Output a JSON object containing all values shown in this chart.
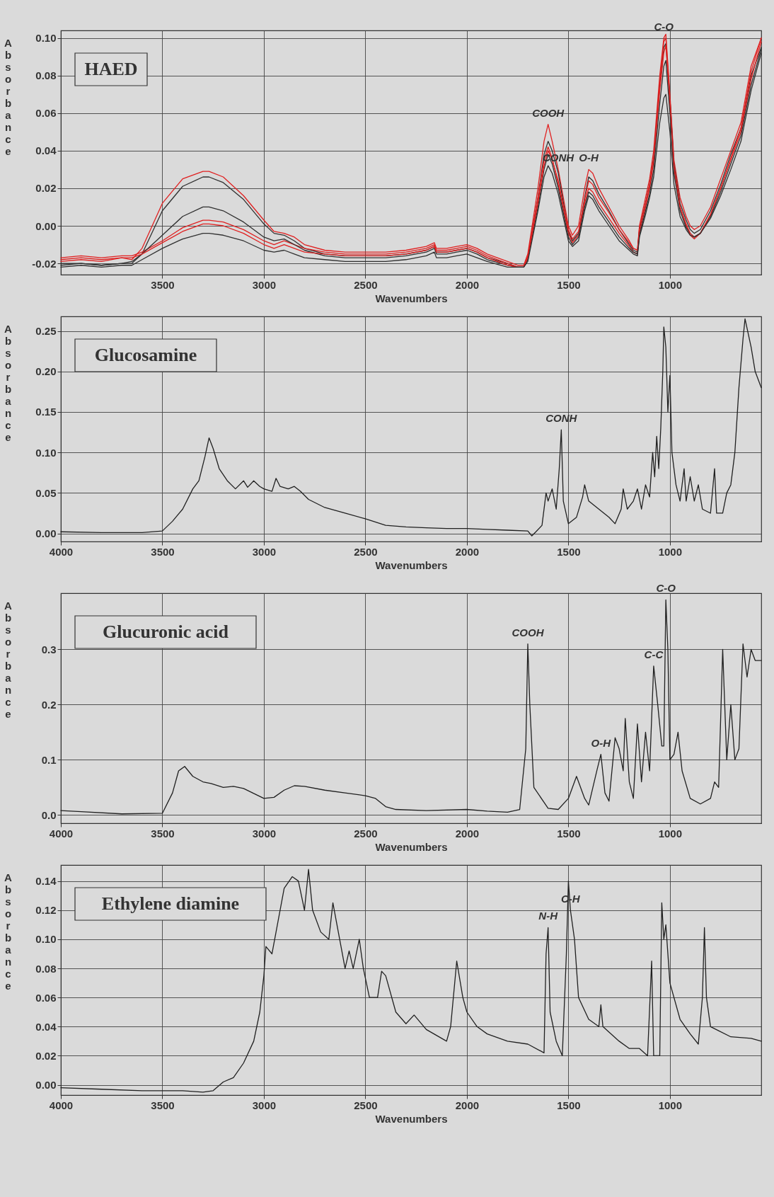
{
  "chart_data": [
    {
      "type": "line",
      "title": "HAED",
      "xlabel": "Wavenumbers",
      "ylabel": "Absorbance",
      "grid": true,
      "xlim": [
        4000,
        550
      ],
      "xticks": [
        3500,
        3000,
        2500,
        2000,
        1500,
        1000
      ],
      "ylim": [
        -0.026,
        0.104
      ],
      "yticks": [
        {
          "value": -0.02,
          "label": "-0.02"
        },
        {
          "value": 0,
          "label": "0.00"
        },
        {
          "value": 0.02,
          "label": "0.02"
        },
        {
          "value": 0.04,
          "label": "0.04"
        },
        {
          "value": 0.06,
          "label": "0.06"
        },
        {
          "value": 0.08,
          "label": "0.08"
        },
        {
          "value": 0.1,
          "label": "0.10"
        }
      ],
      "annotations": [
        {
          "text": "COOH",
          "x": 1600,
          "y": 0.054
        },
        {
          "text": "CONH",
          "x": 1550,
          "y": 0.03
        },
        {
          "text": "O-H",
          "x": 1400,
          "y": 0.03
        },
        {
          "text": "C-O",
          "x": 1030,
          "y": 0.1
        }
      ],
      "x": [
        4000,
        3900,
        3800,
        3700,
        3650,
        3600,
        3500,
        3400,
        3300,
        3270,
        3200,
        3100,
        3000,
        2950,
        2900,
        2850,
        2800,
        2700,
        2600,
        2500,
        2400,
        2300,
        2200,
        2160,
        2150,
        2100,
        2050,
        2000,
        1950,
        1900,
        1800,
        1750,
        1720,
        1700,
        1650,
        1620,
        1600,
        1580,
        1550,
        1500,
        1480,
        1450,
        1420,
        1400,
        1380,
        1350,
        1300,
        1250,
        1200,
        1180,
        1160,
        1150,
        1120,
        1100,
        1080,
        1050,
        1030,
        1020,
        1000,
        980,
        950,
        920,
        900,
        880,
        850,
        800,
        750,
        700,
        650,
        600,
        550
      ],
      "series": [
        {
          "color": "#e02020",
          "values": [
            -0.019,
            -0.018,
            -0.019,
            -0.017,
            -0.018,
            -0.012,
            0.012,
            0.025,
            0.029,
            0.029,
            0.026,
            0.016,
            0.003,
            -0.003,
            -0.004,
            -0.006,
            -0.01,
            -0.013,
            -0.014,
            -0.014,
            -0.014,
            -0.013,
            -0.011,
            -0.009,
            -0.012,
            -0.012,
            -0.011,
            -0.01,
            -0.012,
            -0.015,
            -0.019,
            -0.021,
            -0.021,
            -0.015,
            0.02,
            0.045,
            0.054,
            0.045,
            0.03,
            0.0,
            -0.005,
            0.0,
            0.02,
            0.03,
            0.028,
            0.02,
            0.01,
            0.0,
            -0.008,
            -0.012,
            -0.013,
            0.0,
            0.015,
            0.025,
            0.04,
            0.08,
            0.1,
            0.102,
            0.07,
            0.035,
            0.015,
            0.005,
            0.0,
            -0.002,
            0.0,
            0.01,
            0.025,
            0.04,
            0.055,
            0.085,
            0.1
          ]
        },
        {
          "color": "#303030",
          "values": [
            -0.021,
            -0.02,
            -0.021,
            -0.02,
            -0.02,
            -0.015,
            0.008,
            0.021,
            0.026,
            0.026,
            0.023,
            0.014,
            0.001,
            -0.004,
            -0.005,
            -0.008,
            -0.012,
            -0.015,
            -0.016,
            -0.016,
            -0.016,
            -0.015,
            -0.013,
            -0.011,
            -0.014,
            -0.014,
            -0.013,
            -0.012,
            -0.014,
            -0.017,
            -0.02,
            -0.022,
            -0.022,
            -0.017,
            0.015,
            0.038,
            0.045,
            0.04,
            0.028,
            -0.003,
            -0.008,
            -0.004,
            0.015,
            0.026,
            0.024,
            0.017,
            0.008,
            -0.002,
            -0.01,
            -0.013,
            -0.014,
            -0.002,
            0.012,
            0.022,
            0.036,
            0.075,
            0.095,
            0.097,
            0.068,
            0.033,
            0.012,
            0.003,
            -0.002,
            -0.004,
            -0.002,
            0.008,
            0.022,
            0.038,
            0.052,
            0.08,
            0.095
          ]
        },
        {
          "color": "#e02020",
          "values": [
            -0.017,
            -0.016,
            -0.017,
            -0.016,
            -0.016,
            -0.014,
            -0.008,
            -0.001,
            0.003,
            0.003,
            0.002,
            -0.002,
            -0.008,
            -0.01,
            -0.008,
            -0.01,
            -0.012,
            -0.014,
            -0.015,
            -0.015,
            -0.015,
            -0.014,
            -0.012,
            -0.01,
            -0.013,
            -0.013,
            -0.012,
            -0.011,
            -0.013,
            -0.016,
            -0.02,
            -0.022,
            -0.022,
            -0.016,
            0.015,
            0.035,
            0.042,
            0.036,
            0.022,
            -0.004,
            -0.009,
            -0.005,
            0.012,
            0.02,
            0.018,
            0.012,
            0.004,
            -0.004,
            -0.011,
            -0.014,
            -0.015,
            -0.004,
            0.01,
            0.02,
            0.034,
            0.072,
            0.092,
            0.096,
            0.065,
            0.03,
            0.01,
            0.0,
            -0.005,
            -0.007,
            -0.004,
            0.006,
            0.02,
            0.035,
            0.05,
            0.078,
            0.098
          ]
        },
        {
          "color": "#303030",
          "values": [
            -0.02,
            -0.02,
            -0.021,
            -0.02,
            -0.019,
            -0.015,
            -0.005,
            0.005,
            0.01,
            0.01,
            0.008,
            0.002,
            -0.006,
            -0.008,
            -0.007,
            -0.01,
            -0.013,
            -0.016,
            -0.017,
            -0.017,
            -0.017,
            -0.016,
            -0.014,
            -0.012,
            -0.015,
            -0.015,
            -0.014,
            -0.013,
            -0.015,
            -0.018,
            -0.021,
            -0.022,
            -0.022,
            -0.018,
            0.01,
            0.03,
            0.038,
            0.033,
            0.02,
            -0.006,
            -0.01,
            -0.006,
            0.01,
            0.018,
            0.016,
            0.01,
            0.002,
            -0.006,
            -0.012,
            -0.014,
            -0.015,
            -0.005,
            0.008,
            0.017,
            0.03,
            0.065,
            0.085,
            0.088,
            0.06,
            0.028,
            0.008,
            -0.001,
            -0.004,
            -0.006,
            -0.004,
            0.005,
            0.018,
            0.033,
            0.048,
            0.075,
            0.094
          ]
        },
        {
          "color": "#e02020",
          "values": [
            -0.018,
            -0.017,
            -0.018,
            -0.017,
            -0.017,
            -0.015,
            -0.009,
            -0.003,
            0.001,
            0.001,
            0.0,
            -0.004,
            -0.01,
            -0.012,
            -0.01,
            -0.012,
            -0.014,
            -0.015,
            -0.016,
            -0.016,
            -0.016,
            -0.015,
            -0.013,
            -0.011,
            -0.014,
            -0.014,
            -0.013,
            -0.012,
            -0.014,
            -0.017,
            -0.021,
            -0.022,
            -0.022,
            -0.017,
            0.012,
            0.032,
            0.04,
            0.035,
            0.024,
            -0.002,
            -0.007,
            -0.003,
            0.014,
            0.024,
            0.022,
            0.015,
            0.007,
            -0.002,
            -0.009,
            -0.012,
            -0.013,
            -0.001,
            0.012,
            0.022,
            0.036,
            0.076,
            0.098,
            0.1,
            0.068,
            0.032,
            0.01,
            0.001,
            -0.004,
            -0.006,
            -0.004,
            0.006,
            0.02,
            0.036,
            0.052,
            0.082,
            0.1
          ]
        },
        {
          "color": "#303030",
          "values": [
            -0.022,
            -0.021,
            -0.022,
            -0.021,
            -0.021,
            -0.018,
            -0.012,
            -0.007,
            -0.004,
            -0.004,
            -0.005,
            -0.008,
            -0.013,
            -0.014,
            -0.013,
            -0.015,
            -0.017,
            -0.018,
            -0.019,
            -0.019,
            -0.019,
            -0.018,
            -0.016,
            -0.014,
            -0.017,
            -0.017,
            -0.016,
            -0.015,
            -0.017,
            -0.019,
            -0.022,
            -0.022,
            -0.022,
            -0.019,
            0.008,
            0.026,
            0.032,
            0.028,
            0.017,
            -0.008,
            -0.011,
            -0.008,
            0.008,
            0.016,
            0.014,
            0.008,
            0.0,
            -0.008,
            -0.013,
            -0.015,
            -0.016,
            -0.006,
            0.006,
            0.015,
            0.026,
            0.055,
            0.068,
            0.07,
            0.05,
            0.022,
            0.005,
            -0.002,
            -0.005,
            -0.006,
            -0.004,
            0.004,
            0.016,
            0.03,
            0.045,
            0.072,
            0.092
          ]
        }
      ]
    },
    {
      "type": "line",
      "title": "Glucosamine",
      "xlabel": "Wavenumbers",
      "ylabel": "Absorbance",
      "grid": true,
      "xlim": [
        4000,
        550
      ],
      "xticks": [
        4000,
        3500,
        3000,
        2500,
        2000,
        1500,
        1000
      ],
      "ylim": [
        -0.01,
        0.268
      ],
      "yticks": [
        {
          "value": 0,
          "label": "0.00"
        },
        {
          "value": 0.05,
          "label": "0.05"
        },
        {
          "value": 0.1,
          "label": "0.10"
        },
        {
          "value": 0.15,
          "label": "0.15"
        },
        {
          "value": 0.2,
          "label": "0.20"
        },
        {
          "value": 0.25,
          "label": "0.25"
        }
      ],
      "annotations": [
        {
          "text": "CONH",
          "x": 1535,
          "y": 0.128
        }
      ],
      "x": [
        4000,
        3800,
        3600,
        3500,
        3450,
        3400,
        3350,
        3320,
        3290,
        3270,
        3250,
        3220,
        3180,
        3140,
        3100,
        3080,
        3050,
        3020,
        3000,
        2960,
        2940,
        2920,
        2880,
        2850,
        2820,
        2780,
        2700,
        2600,
        2500,
        2400,
        2300,
        2200,
        2100,
        2000,
        1900,
        1800,
        1700,
        1680,
        1660,
        1630,
        1610,
        1600,
        1580,
        1560,
        1545,
        1535,
        1525,
        1500,
        1460,
        1430,
        1420,
        1400,
        1350,
        1300,
        1270,
        1240,
        1230,
        1210,
        1180,
        1160,
        1140,
        1120,
        1100,
        1085,
        1075,
        1065,
        1055,
        1045,
        1035,
        1030,
        1020,
        1010,
        1000,
        990,
        970,
        950,
        930,
        920,
        900,
        880,
        860,
        840,
        800,
        780,
        770,
        740,
        720,
        700,
        680,
        660,
        640,
        630,
        600,
        580,
        550
      ],
      "series": [
        {
          "color": "#202020",
          "values": [
            0.002,
            0.001,
            0.001,
            0.003,
            0.015,
            0.03,
            0.055,
            0.065,
            0.095,
            0.118,
            0.105,
            0.08,
            0.065,
            0.055,
            0.065,
            0.057,
            0.065,
            0.058,
            0.055,
            0.052,
            0.068,
            0.058,
            0.055,
            0.058,
            0.052,
            0.042,
            0.032,
            0.025,
            0.018,
            0.01,
            0.008,
            0.007,
            0.006,
            0.006,
            0.005,
            0.004,
            0.003,
            -0.003,
            0.002,
            0.01,
            0.05,
            0.04,
            0.055,
            0.03,
            0.08,
            0.128,
            0.04,
            0.012,
            0.02,
            0.045,
            0.06,
            0.04,
            0.03,
            0.02,
            0.012,
            0.03,
            0.055,
            0.03,
            0.04,
            0.055,
            0.03,
            0.06,
            0.045,
            0.1,
            0.07,
            0.12,
            0.08,
            0.13,
            0.2,
            0.255,
            0.23,
            0.15,
            0.195,
            0.1,
            0.06,
            0.04,
            0.08,
            0.04,
            0.07,
            0.04,
            0.06,
            0.03,
            0.025,
            0.08,
            0.025,
            0.025,
            0.05,
            0.06,
            0.1,
            0.18,
            0.24,
            0.265,
            0.23,
            0.2,
            0.18
          ]
        }
      ]
    },
    {
      "type": "line",
      "title": "Glucuronic acid",
      "xlabel": "Wavenumbers",
      "ylabel": "Absorbance",
      "grid": true,
      "xlim": [
        4000,
        550
      ],
      "xticks": [
        4000,
        3500,
        3000,
        2500,
        2000,
        1500,
        1000
      ],
      "ylim": [
        -0.015,
        0.402
      ],
      "yticks": [
        {
          "value": 0,
          "label": "0.0"
        },
        {
          "value": 0.1,
          "label": "0.1"
        },
        {
          "value": 0.2,
          "label": "0.2"
        },
        {
          "value": 0.3,
          "label": "0.3"
        }
      ],
      "annotations": [
        {
          "text": "COOH",
          "x": 1700,
          "y": 0.31
        },
        {
          "text": "O-H",
          "x": 1340,
          "y": 0.11
        },
        {
          "text": "C-C",
          "x": 1080,
          "y": 0.27
        },
        {
          "text": "C-O",
          "x": 1020,
          "y": 0.39
        }
      ],
      "x": [
        4000,
        3900,
        3700,
        3500,
        3450,
        3420,
        3390,
        3350,
        3300,
        3260,
        3200,
        3150,
        3100,
        3000,
        2950,
        2900,
        2850,
        2800,
        2700,
        2600,
        2500,
        2450,
        2400,
        2350,
        2200,
        2000,
        1900,
        1800,
        1740,
        1710,
        1700,
        1690,
        1670,
        1600,
        1550,
        1500,
        1460,
        1420,
        1400,
        1360,
        1340,
        1320,
        1300,
        1270,
        1250,
        1230,
        1220,
        1200,
        1180,
        1160,
        1140,
        1120,
        1100,
        1080,
        1060,
        1040,
        1030,
        1020,
        1010,
        1000,
        980,
        960,
        940,
        900,
        850,
        800,
        780,
        760,
        740,
        720,
        700,
        680,
        660,
        640,
        620,
        600,
        580,
        550
      ],
      "series": [
        {
          "color": "#202020",
          "values": [
            0.008,
            0.006,
            0.002,
            0.003,
            0.04,
            0.08,
            0.088,
            0.07,
            0.06,
            0.057,
            0.05,
            0.052,
            0.048,
            0.03,
            0.032,
            0.045,
            0.053,
            0.052,
            0.045,
            0.04,
            0.035,
            0.03,
            0.015,
            0.01,
            0.008,
            0.01,
            0.007,
            0.005,
            0.01,
            0.12,
            0.31,
            0.2,
            0.05,
            0.012,
            0.01,
            0.03,
            0.07,
            0.03,
            0.018,
            0.08,
            0.11,
            0.04,
            0.025,
            0.14,
            0.12,
            0.08,
            0.175,
            0.06,
            0.03,
            0.165,
            0.06,
            0.15,
            0.08,
            0.27,
            0.2,
            0.125,
            0.125,
            0.39,
            0.3,
            0.1,
            0.11,
            0.15,
            0.08,
            0.03,
            0.02,
            0.03,
            0.06,
            0.05,
            0.3,
            0.1,
            0.2,
            0.1,
            0.12,
            0.31,
            0.25,
            0.3,
            0.28,
            0.28
          ]
        }
      ]
    },
    {
      "type": "line",
      "title": "Ethylene diamine",
      "xlabel": "Wavenumbers",
      "ylabel": "Absorbance",
      "grid": true,
      "xlim": [
        4000,
        550
      ],
      "xticks": [
        4000,
        3500,
        3000,
        2500,
        2000,
        1500,
        1000
      ],
      "ylim": [
        -0.007,
        0.151
      ],
      "yticks": [
        {
          "value": 0,
          "label": "0.00"
        },
        {
          "value": 0.02,
          "label": "0.02"
        },
        {
          "value": 0.04,
          "label": "0.04"
        },
        {
          "value": 0.06,
          "label": "0.06"
        },
        {
          "value": 0.08,
          "label": "0.08"
        },
        {
          "value": 0.1,
          "label": "0.10"
        },
        {
          "value": 0.12,
          "label": "0.12"
        },
        {
          "value": 0.14,
          "label": "0.14"
        }
      ],
      "annotations": [
        {
          "text": "N-H",
          "x": 1600,
          "y": 0.108
        },
        {
          "text": "C-H",
          "x": 1490,
          "y": 0.12
        }
      ],
      "x": [
        4000,
        3800,
        3600,
        3400,
        3300,
        3250,
        3200,
        3150,
        3100,
        3050,
        3020,
        3000,
        2990,
        2960,
        2940,
        2900,
        2860,
        2830,
        2800,
        2780,
        2760,
        2720,
        2680,
        2660,
        2640,
        2620,
        2600,
        2580,
        2560,
        2530,
        2510,
        2480,
        2440,
        2420,
        2400,
        2350,
        2300,
        2260,
        2200,
        2100,
        2080,
        2050,
        2020,
        2000,
        1950,
        1900,
        1800,
        1700,
        1620,
        1610,
        1600,
        1590,
        1560,
        1530,
        1510,
        1500,
        1490,
        1470,
        1450,
        1400,
        1350,
        1340,
        1330,
        1250,
        1200,
        1150,
        1110,
        1090,
        1080,
        1050,
        1040,
        1030,
        1020,
        1000,
        950,
        900,
        860,
        840,
        830,
        820,
        800,
        700,
        600,
        550
      ],
      "series": [
        {
          "color": "#202020",
          "values": [
            -0.002,
            -0.003,
            -0.004,
            -0.004,
            -0.005,
            -0.004,
            0.002,
            0.005,
            0.015,
            0.03,
            0.05,
            0.075,
            0.095,
            0.09,
            0.105,
            0.135,
            0.143,
            0.14,
            0.12,
            0.148,
            0.12,
            0.105,
            0.1,
            0.125,
            0.11,
            0.095,
            0.08,
            0.092,
            0.08,
            0.1,
            0.08,
            0.06,
            0.06,
            0.078,
            0.075,
            0.05,
            0.042,
            0.048,
            0.038,
            0.03,
            0.04,
            0.085,
            0.06,
            0.05,
            0.04,
            0.035,
            0.03,
            0.028,
            0.022,
            0.09,
            0.108,
            0.05,
            0.03,
            0.02,
            0.09,
            0.14,
            0.12,
            0.1,
            0.06,
            0.045,
            0.04,
            0.055,
            0.04,
            0.03,
            0.025,
            0.025,
            0.02,
            0.085,
            0.02,
            0.02,
            0.125,
            0.1,
            0.11,
            0.07,
            0.045,
            0.035,
            0.028,
            0.06,
            0.108,
            0.06,
            0.04,
            0.033,
            0.032,
            0.03
          ]
        }
      ]
    }
  ]
}
